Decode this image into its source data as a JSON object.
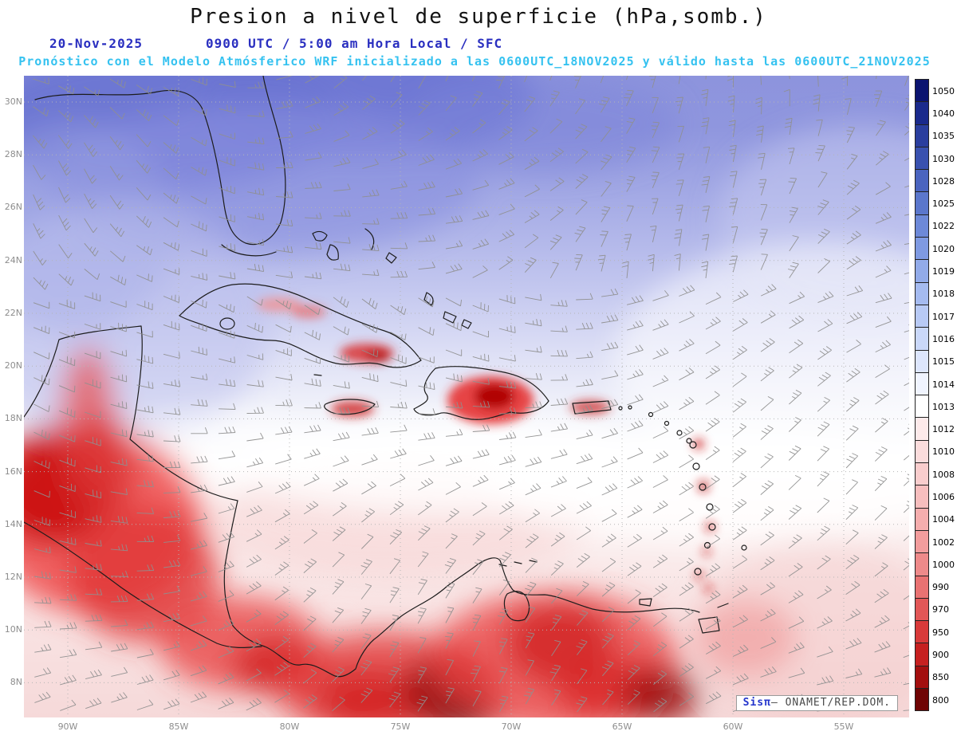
{
  "header": {
    "title": "Presion a nivel de superficie (hPa,somb.)",
    "date": "20-Nov-2025",
    "time_info": "0900 UTC / 5:00 am Hora Local / SFC",
    "forecast_line": "Pronóstico con el Modelo Atmósferico WRF inicializado a las 0600UTC_18NOV2025 y válido hasta las  0600UTC_21NOV2025"
  },
  "map": {
    "lat_labels": [
      "30N",
      "28N",
      "26N",
      "24N",
      "22N",
      "20N",
      "18N",
      "16N",
      "14N",
      "12N",
      "10N",
      "8N"
    ],
    "lon_labels": [
      "90W",
      "85W",
      "80W",
      "75W",
      "70W",
      "65W",
      "60W",
      "55W"
    ]
  },
  "colorbar": {
    "values": [
      "1050",
      "1040",
      "1035",
      "1030",
      "1028",
      "1025",
      "1022",
      "1020",
      "1019",
      "1018",
      "1017",
      "1016",
      "1015",
      "1014",
      "1013",
      "1012",
      "1010",
      "1008",
      "1006",
      "1004",
      "1002",
      "1000",
      "990",
      "970",
      "950",
      "900",
      "850",
      "800"
    ],
    "colors": [
      "#0b1470",
      "#1a2a8c",
      "#2a3e9e",
      "#3951af",
      "#4a64bf",
      "#5b77cc",
      "#6d89d8",
      "#7f9ae2",
      "#92abe9",
      "#a5bbf0",
      "#b8caf5",
      "#cad8f9",
      "#dde6fc",
      "#f0f4fe",
      "#ffffff",
      "#fdeaea",
      "#fbdcdc",
      "#f9cdcd",
      "#f7bebe",
      "#f5aeae",
      "#f29d9d",
      "#ee8a8a",
      "#e97272",
      "#e25757",
      "#d83a3a",
      "#c62020",
      "#a30f0f",
      "#6f0404"
    ]
  },
  "credit": {
    "brand": "Sisπ",
    "org": "– ONAMET/REP.DOM."
  }
}
